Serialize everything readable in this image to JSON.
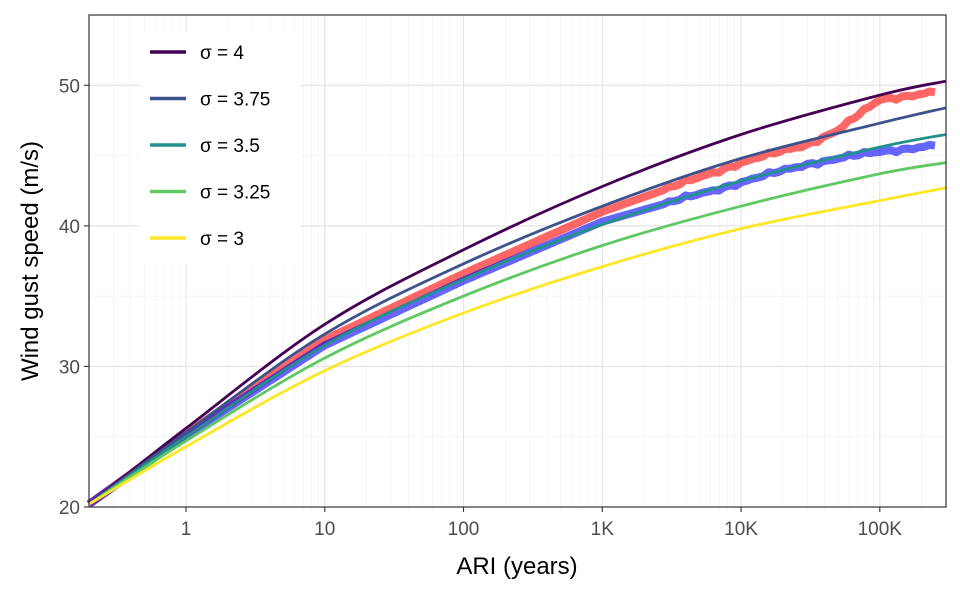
{
  "chart_data": {
    "type": "line",
    "title": "",
    "xlabel": "ARI (years)",
    "ylabel": "Wind gust speed (m/s)",
    "x_scale": "log10",
    "xlim": [
      0.2,
      300000
    ],
    "ylim": [
      20,
      55
    ],
    "grid": true,
    "legend_position": "top-left",
    "x_ticks": [
      {
        "value": 1,
        "label": "1"
      },
      {
        "value": 10,
        "label": "10"
      },
      {
        "value": 100,
        "label": "100"
      },
      {
        "value": 1000,
        "label": "1K"
      },
      {
        "value": 10000,
        "label": "10K"
      },
      {
        "value": 100000,
        "label": "100K"
      }
    ],
    "y_ticks": [
      {
        "value": 20,
        "label": "20"
      },
      {
        "value": 30,
        "label": "30"
      },
      {
        "value": 40,
        "label": "40"
      },
      {
        "value": 50,
        "label": "50"
      }
    ],
    "x": [
      0.2,
      1,
      10,
      100,
      1000,
      10000,
      100000,
      300000
    ],
    "series": [
      {
        "name": "σ = 4",
        "color": "#440154",
        "values": [
          20.2,
          25.6,
          33.0,
          38.3,
          42.8,
          46.5,
          49.3,
          50.3
        ]
      },
      {
        "name": "σ = 3.75",
        "color": "#3b528b",
        "values": [
          20.2,
          25.3,
          32.3,
          37.3,
          41.4,
          44.8,
          47.3,
          48.4
        ]
      },
      {
        "name": "σ = 3.5",
        "color": "#21918c",
        "values": [
          20.2,
          25.0,
          31.5,
          36.2,
          40.1,
          43.2,
          45.6,
          46.5
        ]
      },
      {
        "name": "σ = 3.25",
        "color": "#5ec962",
        "values": [
          20.2,
          24.7,
          30.6,
          35.0,
          38.6,
          41.4,
          43.7,
          44.5
        ]
      },
      {
        "name": "σ = 3",
        "color": "#fde725",
        "values": [
          20.2,
          24.3,
          29.7,
          33.8,
          37.1,
          39.8,
          41.8,
          42.7
        ]
      }
    ],
    "observed_series": [
      {
        "color": "#ff0000",
        "x": [
          0.2,
          1,
          10,
          100,
          1000,
          10000,
          30000,
          50000,
          100000,
          250000
        ],
        "values": [
          20.2,
          25.2,
          31.9,
          36.6,
          41.0,
          44.5,
          45.8,
          46.8,
          49.0,
          49.5
        ]
      },
      {
        "color": "#0000ff",
        "x": [
          0.2,
          1,
          10,
          100,
          1000,
          10000,
          30000,
          100000,
          250000
        ],
        "values": [
          20.2,
          25.1,
          31.5,
          36.1,
          40.3,
          43.1,
          44.4,
          45.3,
          45.7
        ]
      }
    ]
  }
}
